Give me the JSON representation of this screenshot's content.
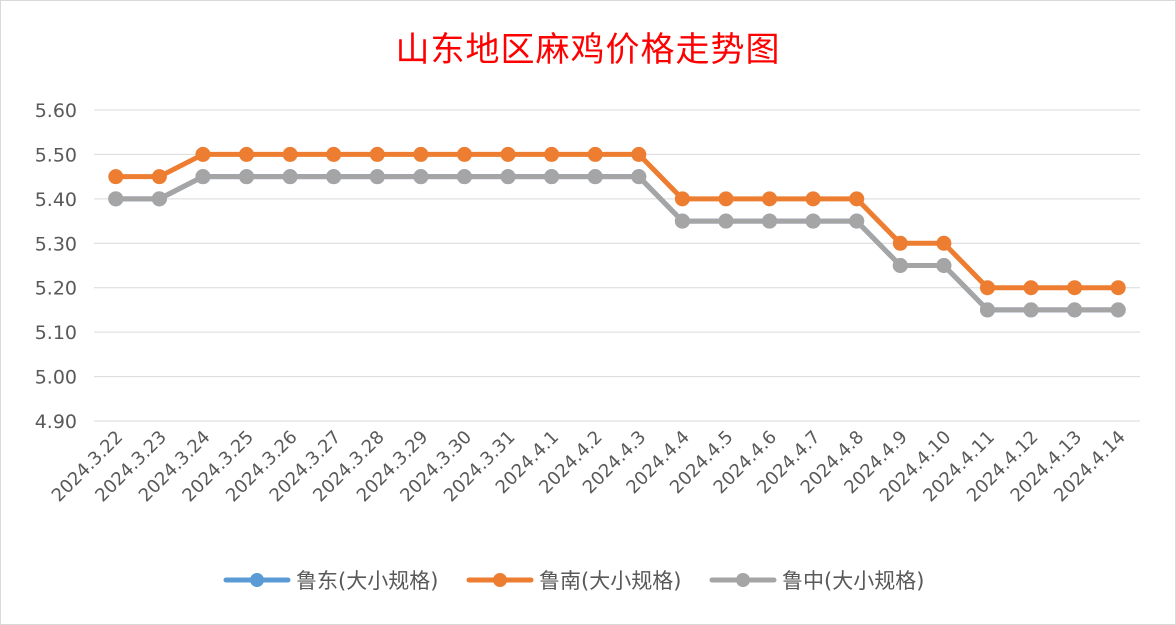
{
  "chart_data": {
    "type": "line",
    "title": "山东地区麻鸡价格走势图",
    "xlabel": "",
    "ylabel": "",
    "categories": [
      "2024.3.22",
      "2024.3.23",
      "2024.3.24",
      "2024.3.25",
      "2024.3.26",
      "2024.3.27",
      "2024.3.28",
      "2024.3.29",
      "2024.3.30",
      "2024.3.31",
      "2024.4.1",
      "2024.4.2",
      "2024.4.3",
      "2024.4.4",
      "2024.4.5",
      "2024.4.6",
      "2024.4.7",
      "2024.4.8",
      "2024.4.9",
      "2024.4.10",
      "2024.4.11",
      "2024.4.12",
      "2024.4.13",
      "2024.4.14"
    ],
    "ylim": [
      4.9,
      5.6
    ],
    "yticks": [
      "4.90",
      "5.00",
      "5.10",
      "5.20",
      "5.30",
      "5.40",
      "5.50",
      "5.60"
    ],
    "grid": true,
    "legend_position": "bottom",
    "series": [
      {
        "name": "鲁东(大小规格)",
        "color": "#5b9bd5",
        "values": [
          5.4,
          5.4,
          5.45,
          5.45,
          5.45,
          5.45,
          5.45,
          5.45,
          5.45,
          5.45,
          5.45,
          5.45,
          5.45,
          5.35,
          5.35,
          5.35,
          5.35,
          5.35,
          5.25,
          5.25,
          5.15,
          5.15,
          5.15,
          5.15
        ]
      },
      {
        "name": "鲁南(大小规格)",
        "color": "#ed7d31",
        "values": [
          5.45,
          5.45,
          5.5,
          5.5,
          5.5,
          5.5,
          5.5,
          5.5,
          5.5,
          5.5,
          5.5,
          5.5,
          5.5,
          5.4,
          5.4,
          5.4,
          5.4,
          5.4,
          5.3,
          5.3,
          5.2,
          5.2,
          5.2,
          5.2
        ]
      },
      {
        "name": "鲁中(大小规格)",
        "color": "#a5a5a5",
        "values": [
          5.4,
          5.4,
          5.45,
          5.45,
          5.45,
          5.45,
          5.45,
          5.45,
          5.45,
          5.45,
          5.45,
          5.45,
          5.45,
          5.35,
          5.35,
          5.35,
          5.35,
          5.35,
          5.25,
          5.25,
          5.15,
          5.15,
          5.15,
          5.15
        ]
      }
    ]
  }
}
